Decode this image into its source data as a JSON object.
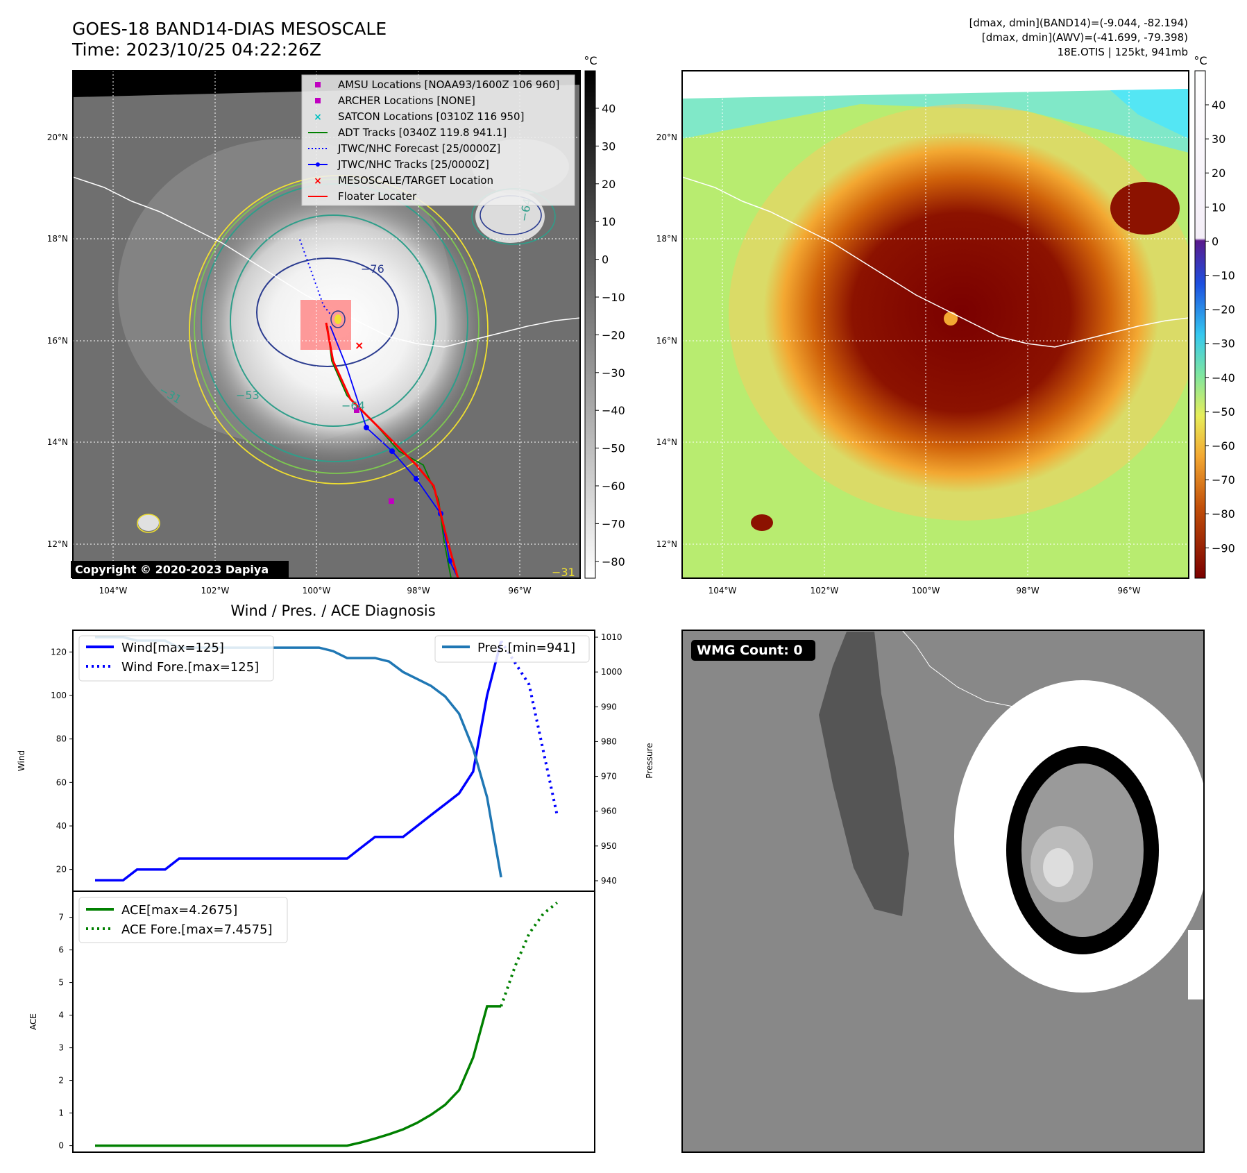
{
  "header": {
    "title_line1": "GOES-18 BAND14-DIAS MESOSCALE",
    "title_line2": "Time: 2023/10/25 04:22:26Z",
    "info_line1": "[dmax, dmin](BAND14)=(-9.044, -82.194)",
    "info_line2": "[dmax, dmin](AWV)=(-41.699, -79.398)",
    "info_line3": "18E.OTIS | 125kt, 941mb"
  },
  "map_common": {
    "lon_labels": [
      "104°W",
      "102°W",
      "100°W",
      "98°W",
      "96°W"
    ],
    "lat_labels": [
      "20°N",
      "18°N",
      "16°N",
      "14°N",
      "12°N"
    ],
    "unit": "°C"
  },
  "ir_panel": {
    "colorbar_ticks": [
      "40",
      "30",
      "20",
      "10",
      "0",
      "−10",
      "−20",
      "−30",
      "−40",
      "−50",
      "−60",
      "−70",
      "−80"
    ],
    "contour_labels": [
      "−76",
      "−64",
      "−64",
      "−31",
      "−31",
      "−53"
    ],
    "copyright": "Copyright © 2020-2023 Dapiya",
    "legend": [
      {
        "label": "AMSU Locations [NOAA93/1600Z 106 960]",
        "color": "#c000c0",
        "marker": "square"
      },
      {
        "label": "ARCHER Locations [NONE]",
        "color": "#c000c0",
        "marker": "square"
      },
      {
        "label": "SATCON Locations [0310Z 116 950]",
        "color": "#00c0c0",
        "marker": "x"
      },
      {
        "label": "ADT Tracks [0340Z 119.8 941.1]",
        "color": "#008000",
        "marker": "line"
      },
      {
        "label": "JTWC/NHC Forecast [25/0000Z]",
        "color": "#0000ff",
        "marker": "dotted"
      },
      {
        "label": "JTWC/NHC Tracks [25/0000Z]",
        "color": "#0000ff",
        "marker": "line-dot"
      },
      {
        "label": "MESOSCALE/TARGET Location",
        "color": "#ff0000",
        "marker": "x"
      },
      {
        "label": "Floater Locater",
        "color": "#ff0000",
        "marker": "line"
      }
    ]
  },
  "awv_panel": {
    "colorbar_ticks": [
      "40",
      "30",
      "20",
      "10",
      "0",
      "−10",
      "−20",
      "−30",
      "−40",
      "−50",
      "−60",
      "−70",
      "−80",
      "−90"
    ]
  },
  "wmg_panel": {
    "badge": "WMG Count: 0"
  },
  "chart_data": [
    {
      "type": "line",
      "title": "Wind / Pres. / ACE Diagnosis",
      "ylabel": "Wind",
      "ylabel2": "Pressure",
      "ylim": [
        10,
        130
      ],
      "ylim2": [
        937,
        1012
      ],
      "yticks": [
        "20",
        "40",
        "60",
        "80",
        "100",
        "120"
      ],
      "yticks2": [
        "940",
        "950",
        "960",
        "970",
        "980",
        "990",
        "1000",
        "1010"
      ],
      "x": [
        0,
        1,
        2,
        3,
        4,
        5,
        6,
        7,
        8,
        9,
        10,
        11,
        12,
        13,
        14,
        15,
        16,
        17,
        18,
        19,
        20,
        21,
        22,
        23,
        24,
        25,
        26,
        27,
        28,
        29,
        30,
        31,
        32,
        33,
        34
      ],
      "series": [
        {
          "name": "Wind[max=125]",
          "color": "#0000ff",
          "style": "solid",
          "x": [
            0,
            1,
            2,
            3,
            4,
            5,
            6,
            7,
            8,
            9,
            10,
            11,
            12,
            13,
            14,
            15,
            16,
            17,
            18,
            19,
            20,
            21,
            22,
            23,
            24,
            25,
            26,
            27,
            28,
            29
          ],
          "values": [
            15,
            15,
            15,
            20,
            20,
            20,
            25,
            25,
            25,
            25,
            25,
            25,
            25,
            25,
            25,
            25,
            25,
            25,
            25,
            30,
            35,
            35,
            35,
            40,
            45,
            50,
            55,
            65,
            100,
            125
          ]
        },
        {
          "name": "Wind Fore.[max=125]",
          "color": "#0000ff",
          "style": "dotted",
          "x": [
            29,
            30,
            31,
            32,
            33
          ],
          "values": [
            125,
            115,
            105,
            75,
            45
          ]
        },
        {
          "name": "Pres.[min=941]",
          "color": "#1f77b4",
          "style": "solid",
          "axis": "right",
          "x": [
            0,
            1,
            2,
            3,
            4,
            5,
            6,
            7,
            8,
            9,
            10,
            11,
            12,
            13,
            14,
            15,
            16,
            17,
            18,
            19,
            20,
            21,
            22,
            23,
            24,
            25,
            26,
            27,
            28,
            29
          ],
          "values": [
            1010,
            1010,
            1010,
            1009,
            1009,
            1009,
            1007,
            1007,
            1007,
            1007,
            1007,
            1007,
            1007,
            1007,
            1007,
            1007,
            1007,
            1006,
            1004,
            1004,
            1004,
            1003,
            1000,
            998,
            996,
            993,
            988,
            978,
            964,
            941
          ]
        }
      ]
    },
    {
      "type": "line",
      "ylabel": "ACE",
      "ylim": [
        -0.2,
        7.8
      ],
      "yticks": [
        "0",
        "1",
        "2",
        "3",
        "4",
        "5",
        "6",
        "7"
      ],
      "series": [
        {
          "name": "ACE[max=4.2675]",
          "color": "#008000",
          "style": "solid",
          "x": [
            0,
            2,
            4,
            6,
            8,
            10,
            12,
            14,
            16,
            18,
            19,
            20,
            21,
            22,
            23,
            24,
            25,
            26,
            27,
            28,
            29
          ],
          "values": [
            0,
            0,
            0,
            0,
            0,
            0,
            0,
            0,
            0,
            0,
            0.1,
            0.22,
            0.35,
            0.5,
            0.7,
            0.95,
            1.25,
            1.7,
            2.7,
            4.27,
            4.27
          ]
        },
        {
          "name": "ACE Fore.[max=7.4575]",
          "color": "#008000",
          "style": "dotted",
          "x": [
            29,
            30,
            31,
            32,
            33
          ],
          "values": [
            4.27,
            5.5,
            6.5,
            7.1,
            7.45
          ]
        }
      ]
    }
  ]
}
